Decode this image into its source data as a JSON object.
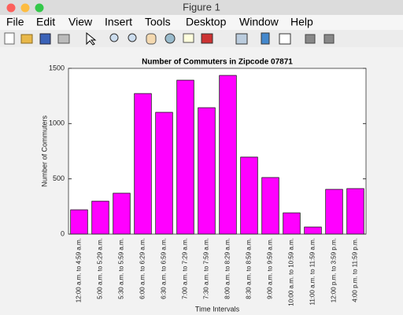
{
  "window": {
    "title": "Figure 1",
    "menu": [
      "File",
      "Edit",
      "View",
      "Insert",
      "Tools",
      "Desktop",
      "Window",
      "Help"
    ]
  },
  "chart_data": {
    "type": "bar",
    "title": "Number of Commuters in Zipcode 07871",
    "x_label": "Time Intervals",
    "y_label": "Number of Commuters",
    "categories": [
      "12:00 a.m. to 4:59 a.m.",
      "5:00 a.m. to 5:29 a.m.",
      "5:30 a.m. to 5:59 a.m.",
      "6:00 a.m. to 6:29 a.m.",
      "6:30 a.m. to 6:59 a.m.",
      "7:00 a.m. to 7:29 a.m.",
      "7:30 a.m. to 7:59 a.m.",
      "8:00 a.m. to 8:29 a.m.",
      "8:30 a.m. to 8:59 a.m.",
      "9:00 a.m. to 9:59 a.m.",
      "10:00 a.m. to 10:59 a.m.",
      "11:00 a.m. to 11:59 a.m.",
      "12:00 p.m. to 3:59 p.m.",
      "4:00 p.m. to 11:59 p.m."
    ],
    "values": [
      220,
      298,
      370,
      1272,
      1102,
      1393,
      1144,
      1436,
      697,
      512,
      192,
      64,
      405,
      412
    ],
    "color": "#ff00ff",
    "ylim": [
      0,
      1500
    ],
    "yticks": [
      0,
      500,
      1000,
      1500
    ]
  }
}
